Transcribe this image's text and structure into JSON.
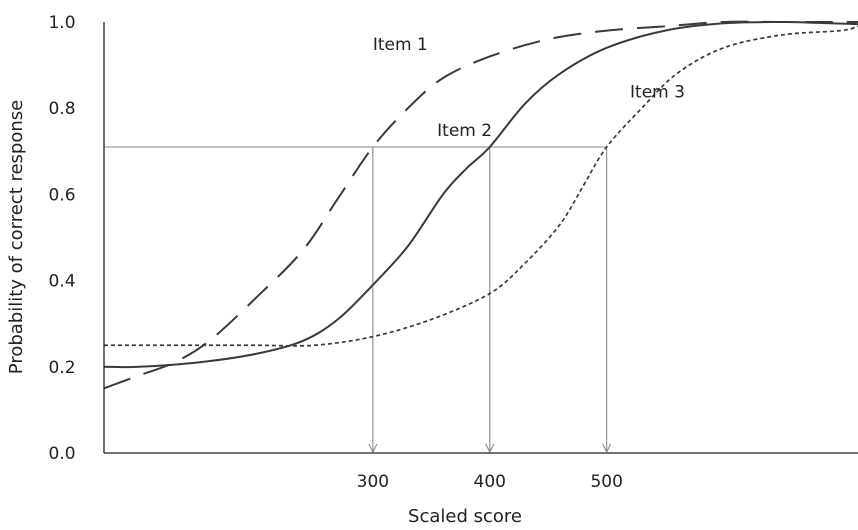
{
  "chart_data": {
    "type": "line",
    "title": "",
    "xlabel": "Scaled score",
    "ylabel": "Probability of correct response",
    "xlim": [
      70,
      715
    ],
    "ylim": [
      0.0,
      1.0
    ],
    "x_ticks": [
      300,
      400,
      500
    ],
    "y_ticks": [
      "0.0",
      "0.2",
      "0.4",
      "0.6",
      "0.8",
      "1.0"
    ],
    "grid": false,
    "legend": "inline labels",
    "reference": {
      "probability": 0.71,
      "scores": [
        300,
        400,
        500
      ]
    },
    "series": [
      {
        "name": "Item 1",
        "style": "long-dash",
        "points": [
          [
            70,
            0.15
          ],
          [
            100,
            0.18
          ],
          [
            130,
            0.21
          ],
          [
            160,
            0.26
          ],
          [
            200,
            0.36
          ],
          [
            240,
            0.47
          ],
          [
            270,
            0.59
          ],
          [
            300,
            0.71
          ],
          [
            330,
            0.8
          ],
          [
            360,
            0.87
          ],
          [
            400,
            0.92
          ],
          [
            450,
            0.96
          ],
          [
            500,
            0.98
          ],
          [
            550,
            0.99
          ],
          [
            600,
            1.0
          ],
          [
            650,
            1.0
          ],
          [
            715,
            1.0
          ]
        ],
        "label_at": [
          300,
          0.935
        ]
      },
      {
        "name": "Item 2",
        "style": "solid",
        "points": [
          [
            70,
            0.2
          ],
          [
            100,
            0.2
          ],
          [
            150,
            0.21
          ],
          [
            200,
            0.23
          ],
          [
            240,
            0.26
          ],
          [
            270,
            0.31
          ],
          [
            300,
            0.39
          ],
          [
            330,
            0.48
          ],
          [
            360,
            0.6
          ],
          [
            380,
            0.66
          ],
          [
            400,
            0.71
          ],
          [
            430,
            0.81
          ],
          [
            460,
            0.88
          ],
          [
            500,
            0.94
          ],
          [
            550,
            0.98
          ],
          [
            600,
            0.997
          ],
          [
            650,
            1.0
          ],
          [
            680,
            0.998
          ],
          [
            715,
            0.995
          ]
        ],
        "label_at": [
          355,
          0.735
        ]
      },
      {
        "name": "Item 3",
        "style": "dotted",
        "points": [
          [
            70,
            0.25
          ],
          [
            100,
            0.25
          ],
          [
            150,
            0.25
          ],
          [
            200,
            0.25
          ],
          [
            250,
            0.25
          ],
          [
            300,
            0.27
          ],
          [
            350,
            0.31
          ],
          [
            400,
            0.37
          ],
          [
            430,
            0.44
          ],
          [
            460,
            0.53
          ],
          [
            480,
            0.62
          ],
          [
            500,
            0.71
          ],
          [
            530,
            0.8
          ],
          [
            560,
            0.88
          ],
          [
            600,
            0.94
          ],
          [
            650,
            0.97
          ],
          [
            700,
            0.98
          ],
          [
            715,
            0.99
          ]
        ],
        "label_at": [
          520,
          0.825
        ]
      }
    ]
  }
}
